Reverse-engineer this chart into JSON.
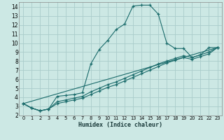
{
  "xlabel": "Humidex (Indice chaleur)",
  "bg_color": "#cce8e4",
  "grid_color": "#aaccca",
  "line_color": "#1a6b6b",
  "xlim": [
    -0.5,
    23.5
  ],
  "ylim": [
    2,
    14.5
  ],
  "xticks": [
    0,
    1,
    2,
    3,
    4,
    5,
    6,
    7,
    8,
    9,
    10,
    11,
    12,
    13,
    14,
    15,
    16,
    17,
    18,
    19,
    20,
    21,
    22,
    23
  ],
  "yticks": [
    2,
    3,
    4,
    5,
    6,
    7,
    8,
    9,
    10,
    11,
    12,
    13,
    14
  ],
  "main_x": [
    0,
    1,
    2,
    3,
    4,
    5,
    6,
    7,
    8,
    9,
    10,
    11,
    12,
    13,
    14,
    15,
    16,
    17,
    18,
    19,
    20,
    21,
    22,
    23
  ],
  "main_y": [
    3.3,
    2.8,
    2.5,
    2.7,
    4.1,
    4.2,
    4.3,
    4.5,
    7.7,
    9.3,
    10.3,
    11.5,
    12.1,
    14.1,
    14.2,
    14.2,
    13.2,
    10.0,
    9.4,
    9.4,
    8.4,
    8.7,
    9.5,
    9.5
  ],
  "line2_x": [
    0,
    1,
    2,
    3,
    4,
    5,
    6,
    7,
    8,
    9,
    10,
    11,
    12,
    13,
    14,
    15,
    16,
    17,
    18,
    19,
    20,
    21,
    22,
    23
  ],
  "line2_y": [
    3.3,
    2.8,
    2.5,
    2.7,
    3.5,
    3.7,
    3.9,
    4.1,
    4.6,
    5.0,
    5.4,
    5.7,
    6.1,
    6.5,
    6.9,
    7.3,
    7.7,
    8.0,
    8.3,
    8.6,
    8.4,
    8.7,
    9.0,
    9.5
  ],
  "line3_x": [
    0,
    1,
    2,
    3,
    4,
    5,
    6,
    7,
    8,
    9,
    10,
    11,
    12,
    13,
    14,
    15,
    16,
    17,
    18,
    19,
    20,
    21,
    22,
    23
  ],
  "line3_y": [
    3.3,
    2.8,
    2.5,
    2.7,
    3.3,
    3.5,
    3.7,
    3.9,
    4.3,
    4.7,
    5.1,
    5.4,
    5.8,
    6.2,
    6.6,
    7.0,
    7.4,
    7.8,
    8.1,
    8.4,
    8.2,
    8.5,
    8.8,
    9.5
  ],
  "line4_x": [
    0,
    23
  ],
  "line4_y": [
    3.3,
    9.5
  ]
}
